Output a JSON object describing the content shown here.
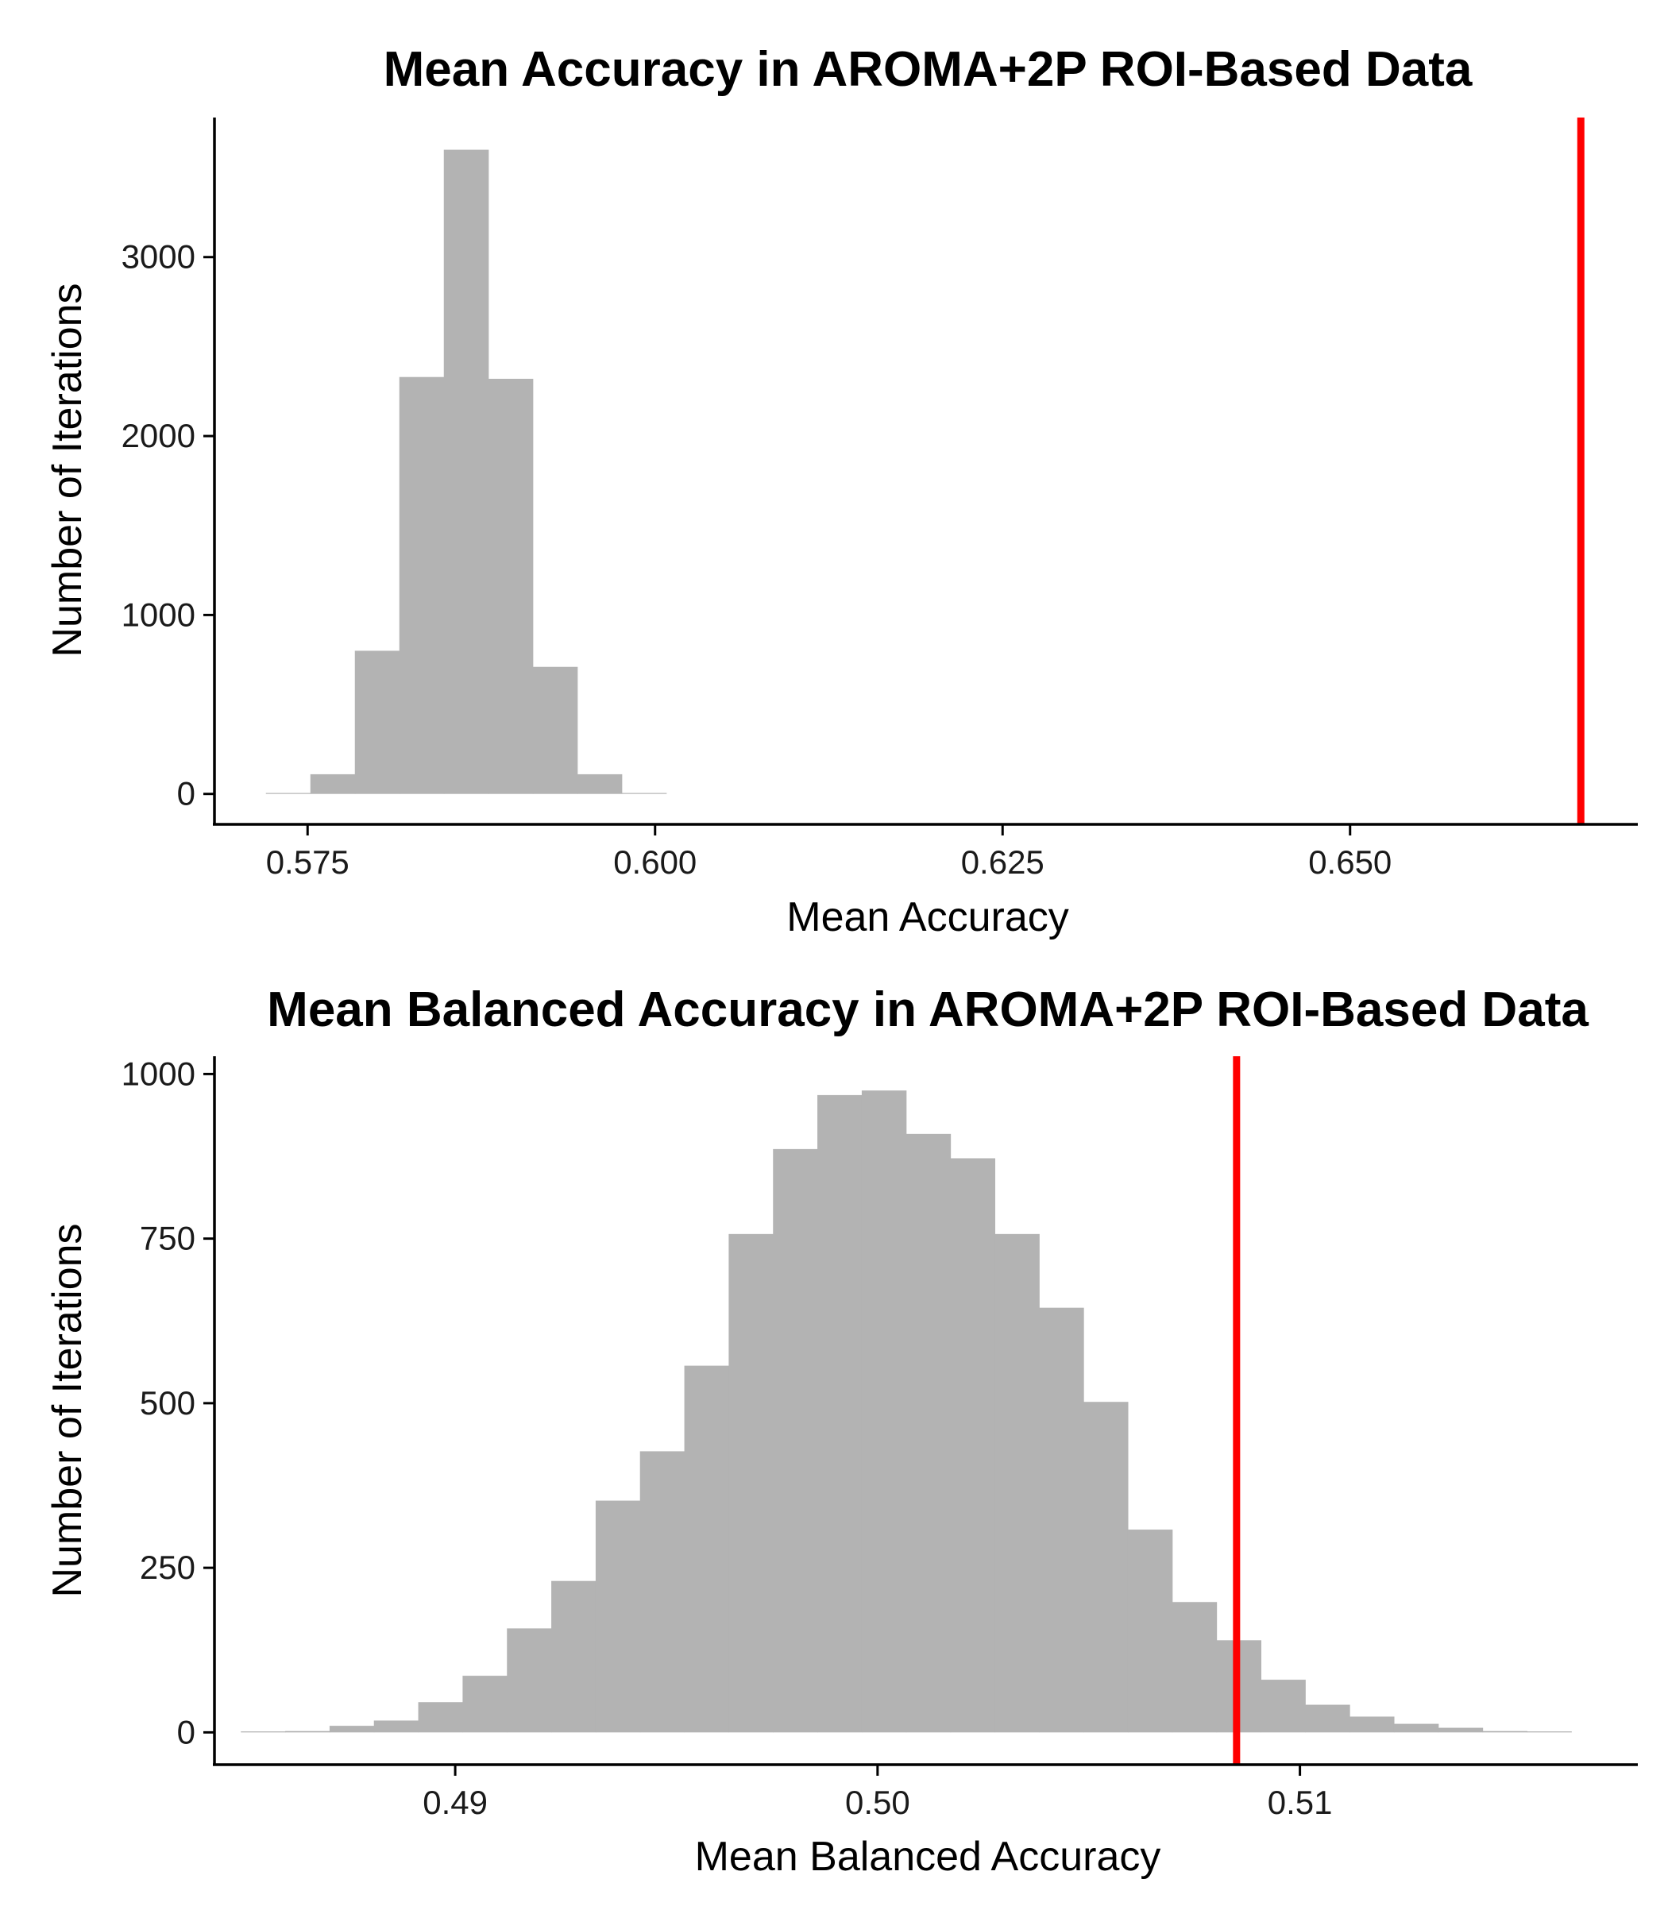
{
  "chart_data": [
    {
      "type": "bar",
      "title": "Mean Accuracy in AROMA+2P ROI-Based Data",
      "xlabel": "Mean Accuracy",
      "ylabel": "Number of Iterations",
      "xlim": [
        0.5683,
        0.6707
      ],
      "ylim": [
        -170,
        3780
      ],
      "x_ticks": [
        0.575,
        0.6,
        0.625,
        0.65
      ],
      "x_tick_labels": [
        "0.575",
        "0.600",
        "0.625",
        "0.650"
      ],
      "y_ticks": [
        0,
        1000,
        2000,
        3000
      ],
      "y_tick_labels": [
        "0",
        "1000",
        "2000",
        "3000"
      ],
      "bin_width": 0.0032,
      "bins": [
        {
          "x": 0.5736,
          "count": 5
        },
        {
          "x": 0.5768,
          "count": 110
        },
        {
          "x": 0.58,
          "count": 800
        },
        {
          "x": 0.5832,
          "count": 2330
        },
        {
          "x": 0.5864,
          "count": 3600
        },
        {
          "x": 0.5896,
          "count": 2320
        },
        {
          "x": 0.5928,
          "count": 710
        },
        {
          "x": 0.596,
          "count": 110
        },
        {
          "x": 0.5992,
          "count": 5
        }
      ],
      "reference_line": {
        "x": 0.6666,
        "color": "#ff0000"
      },
      "bar_color": "#b3b3b3",
      "grid": false
    },
    {
      "type": "bar",
      "title": "Mean Balanced Accuracy in AROMA+2P ROI-Based Data",
      "xlabel": "Mean Balanced Accuracy",
      "ylabel": "Number of Iterations",
      "xlim": [
        0.4843,
        0.518
      ],
      "ylim": [
        -49,
        1027
      ],
      "x_ticks": [
        0.49,
        0.5,
        0.51
      ],
      "x_tick_labels": [
        "0.49",
        "0.50",
        "0.51"
      ],
      "y_ticks": [
        0,
        250,
        500,
        750,
        1000
      ],
      "y_tick_labels": [
        "0",
        "250",
        "500",
        "750",
        "1000"
      ],
      "bin_width": 0.00105,
      "bins": [
        {
          "x": 0.48545,
          "count": 0
        },
        {
          "x": 0.4865,
          "count": 2
        },
        {
          "x": 0.48755,
          "count": 10
        },
        {
          "x": 0.4886,
          "count": 18
        },
        {
          "x": 0.48965,
          "count": 46
        },
        {
          "x": 0.4907,
          "count": 86
        },
        {
          "x": 0.49175,
          "count": 158
        },
        {
          "x": 0.4928,
          "count": 230
        },
        {
          "x": 0.49385,
          "count": 352
        },
        {
          "x": 0.4949,
          "count": 427
        },
        {
          "x": 0.49595,
          "count": 557
        },
        {
          "x": 0.497,
          "count": 757
        },
        {
          "x": 0.49805,
          "count": 886
        },
        {
          "x": 0.4991,
          "count": 968
        },
        {
          "x": 0.50015,
          "count": 975
        },
        {
          "x": 0.5012,
          "count": 909
        },
        {
          "x": 0.50225,
          "count": 872
        },
        {
          "x": 0.5033,
          "count": 757
        },
        {
          "x": 0.50435,
          "count": 645
        },
        {
          "x": 0.5054,
          "count": 502
        },
        {
          "x": 0.50645,
          "count": 308
        },
        {
          "x": 0.5075,
          "count": 198
        },
        {
          "x": 0.50855,
          "count": 140
        },
        {
          "x": 0.5096,
          "count": 80
        },
        {
          "x": 0.51065,
          "count": 42
        },
        {
          "x": 0.5117,
          "count": 24
        },
        {
          "x": 0.51275,
          "count": 13
        },
        {
          "x": 0.5138,
          "count": 7
        },
        {
          "x": 0.51485,
          "count": 2
        },
        {
          "x": 0.5159,
          "count": 0
        }
      ],
      "reference_line": {
        "x": 0.5085,
        "color": "#ff0000"
      },
      "bar_color": "#b3b3b3",
      "grid": false
    }
  ]
}
